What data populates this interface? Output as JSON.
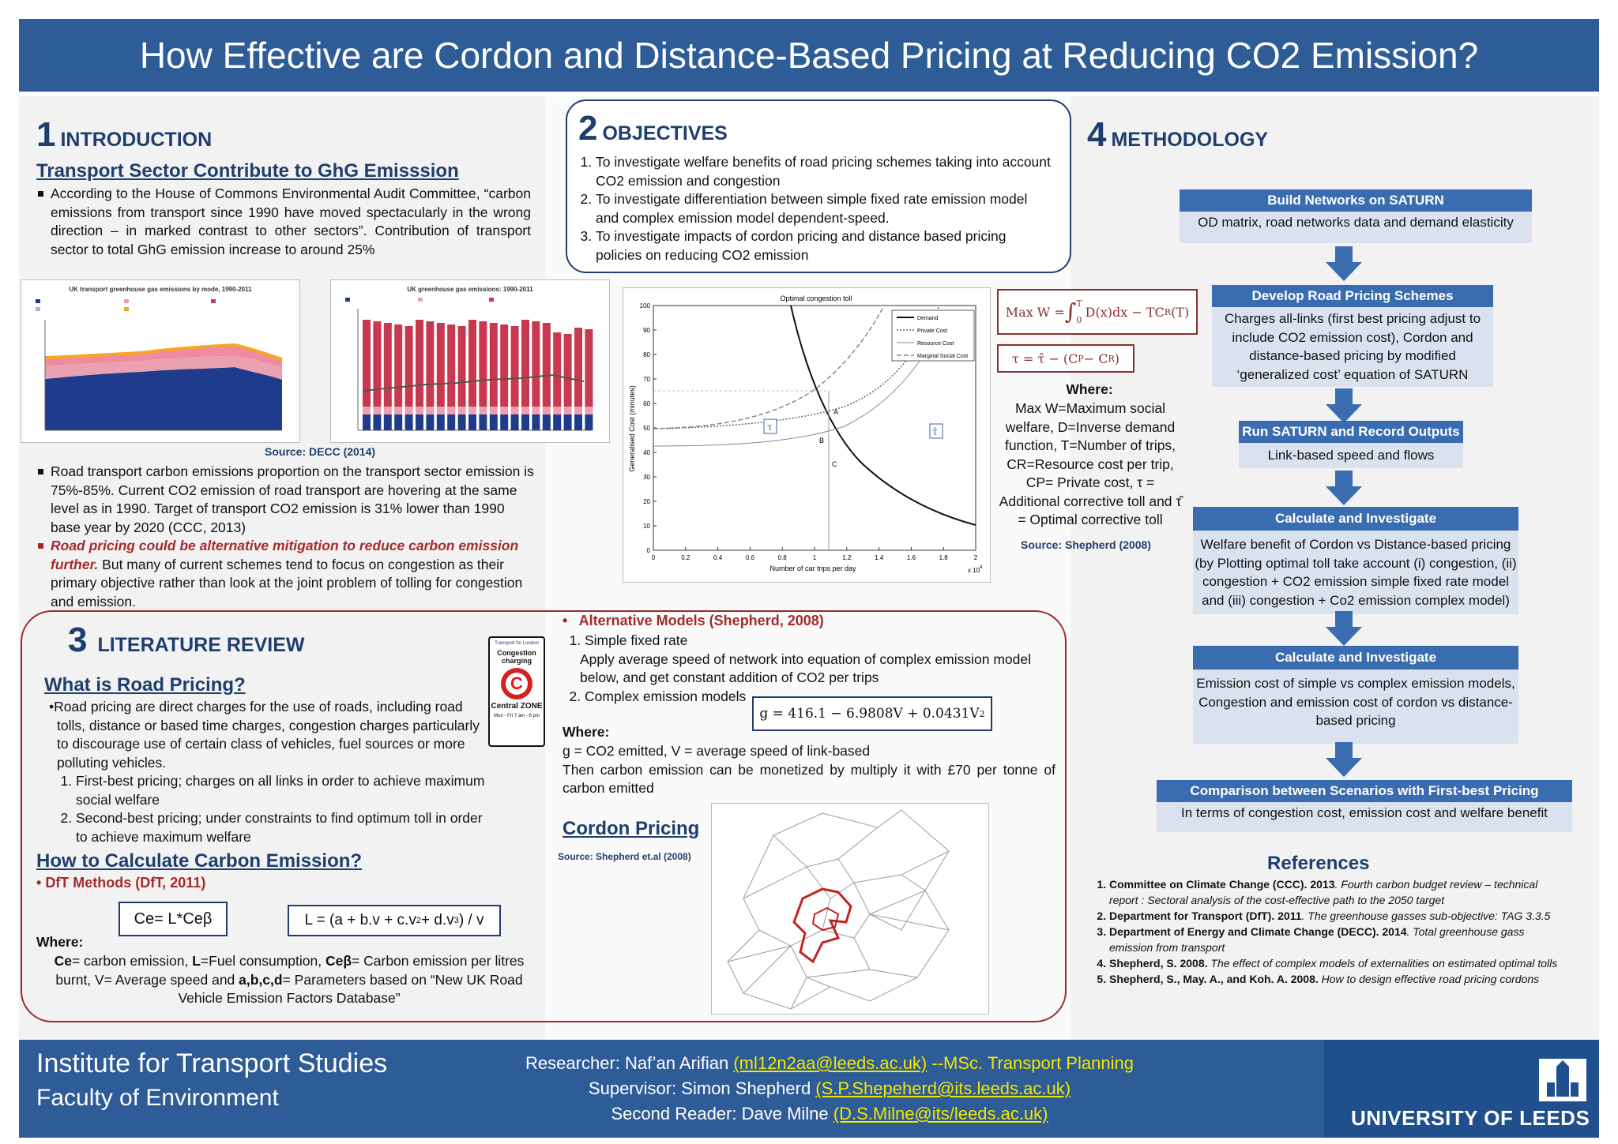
{
  "title": "How Effective are Cordon and Distance-Based Pricing at Reducing CO2 Emission?",
  "intro": {
    "num": "1",
    "heading": "INTRODUCTION",
    "subheading": "Transport Sector Contribute to GhG Emisssion",
    "bullet1": "According to the House of Commons Environmental Audit Committee, “carbon emissions from transport since 1990 have moved spectacularly in the wrong direction – in marked contrast to other sectors”. Contribution of transport sector to total GhG emission increase to around 25%",
    "fig1_title": "UK transport greenhouse gas emissions by mode, 1990-2011",
    "fig2_title": "UK greenhouse gas emissions: 1990-2011",
    "source": "Source: DECC (2014)",
    "bullet2": "Road transport carbon emissions  proportion on the transport sector emission is  75%-85%. Current  CO2 emission of road transport are hovering at the same level as in 1990. Target of transport CO2 emission is  31% lower than 1990 base year by 2020 (CCC, 2013)",
    "bullet3_red": "Road pricing could be alternative mitigation to reduce carbon emission further.",
    "bullet3_rest": " But many of current schemes tend to focus on congestion as their primary objective rather than look at the joint problem of tolling for congestion and emission."
  },
  "objectives": {
    "num": "2",
    "heading": "OBJECTIVES",
    "items": [
      "To investigate welfare benefits of road pricing schemes taking into account CO2 emission and congestion",
      "To investigate differentiation between simple fixed rate emission model and complex emission model dependent-speed.",
      "To investigate impacts of cordon pricing and distance based pricing policies on reducing CO2 emission"
    ]
  },
  "toll_chart": {
    "title": "Optimal congestion toll",
    "xlabel": "Number of car trips per day",
    "ylabel": "Generalised Cost (minutes)",
    "xticks": [
      "0",
      "0.2",
      "0.4",
      "0.6",
      "0.8",
      "1",
      "1.2",
      "1.4",
      "1.6",
      "1.8",
      "2"
    ],
    "yticks": [
      "0",
      "10",
      "20",
      "30",
      "40",
      "50",
      "60",
      "70",
      "80",
      "90",
      "100"
    ],
    "xexp": "x 10",
    "xexp_sup": "4",
    "legend": [
      "Demand",
      "Private Cost",
      "Resource Cost",
      "Marginal Social Cost"
    ],
    "points": [
      "A",
      "B",
      "C"
    ],
    "tau": "τ",
    "tau_hat": "τ̂"
  },
  "equations": {
    "maxw_prefix": "Max W = ",
    "maxw_integral": "∫",
    "maxw_upper": "T",
    "maxw_lower": "0",
    "maxw_body": "D(x)dx − TC",
    "maxw_sub": "R",
    "maxw_end": " (T)",
    "tau_eq": "τ = τ̂ − (C",
    "tau_p": "P",
    "tau_mid": " − C",
    "tau_r": "R",
    "tau_end": ")",
    "where": "Where:",
    "where_text": "Max W=Maximum social welfare, D=Inverse demand function, T=Number of trips, CR=Resource cost per trip, CP= Private cost, τ = Additional corrective toll and τ̂ = Optimal corrective toll",
    "source": "Source: Shepherd (2008)"
  },
  "methodology": {
    "num": "4",
    "heading": "METHODOLOGY",
    "steps": [
      {
        "head": "Build Networks on SATURN",
        "body": "OD matrix, road networks data and demand elasticity"
      },
      {
        "head": "Develop Road Pricing Schemes",
        "body": "Charges all-links (first best pricing adjust to include CO2 emission cost), Cordon and distance-based pricing by modified ‘generalized cost’ equation of SATURN"
      },
      {
        "head": "Run SATURN and Record Outputs",
        "body": "Link-based speed and flows"
      },
      {
        "head": "Calculate and Investigate",
        "body": "Welfare benefit of Cordon vs Distance-based pricing (by Plotting optimal toll take account (i) congestion, (ii) congestion + CO2 emission simple fixed rate model and (iii) congestion + Co2 emission complex model)"
      },
      {
        "head": "Calculate and Investigate",
        "body": "Emission cost of simple vs complex emission models, Congestion and emission cost  of cordon vs distance-based pricing"
      },
      {
        "head": "Comparison between Scenarios with First-best Pricing",
        "body": "In terms of congestion cost, emission cost and welfare benefit"
      }
    ]
  },
  "literature": {
    "num": "3",
    "heading": "LITERATURE REVIEW",
    "sub1": "What is Road Pricing?",
    "def": "Road pricing are direct charges for the use of roads, including road tolls, distance or based time charges, congestion charges particularly to discourage use of certain class of vehicles, fuel sources or more polluting vehicles.",
    "types": [
      "First-best pricing; charges on all links in order to  achieve maximum social welfare",
      "Second-best pricing; under constraints  to find optimum toll in order to achieve maximum welfare"
    ],
    "sign_top": "Transport for London",
    "sign_cc": "Congestion charging",
    "sign_c": "C",
    "sign_zone": "Central ZONE",
    "sign_time": "Mon - Fri 7 am - 6 pm",
    "sub2": "How to Calculate Carbon Emission?",
    "dft": "DfT Methods (DfT, 2011)",
    "eq1": "Ce= L*Ceβ",
    "eq2_a": "L = (a + b.v + c.v",
    "eq2_sup1": "2",
    "eq2_b": " + d.v",
    "eq2_sup2": "3",
    "eq2_c": ") / v",
    "where": "Where:",
    "where_ce": "Ce",
    "where_t1": "= carbon emission, ",
    "where_l": "L",
    "where_t2": "=Fuel consumption, ",
    "where_ceb": "Ceβ",
    "where_t3": "= Carbon emission per litres burnt, V= Average speed and ",
    "where_abcd": "a,b,c,d",
    "where_t4": "= Parameters based on “New UK Road Vehicle Emission Factors Database”",
    "alt_head": "Alternative Models (Shepherd, 2008)",
    "alt1": "Simple fixed rate",
    "alt1_desc": "Apply average speed of network into equation of complex emission model below, and  get constant addition of CO2 per trips",
    "alt2": "Complex emission models",
    "g_eq": "g = 416.1 − 6.9808V + 0.0431V",
    "g_sup": "2",
    "where2": "Where:",
    "g_where": "g = CO2 emitted, V = average speed of link-based",
    "monetize": "Then carbon emission can be monetized by multiply it with £70 per tonne of carbon emitted",
    "cordon_head": "Cordon Pricing",
    "cordon_src": "Source: Shepherd et.al (2008)"
  },
  "references": {
    "heading": "References",
    "items": [
      {
        "b": "Committee on Climate Change (CCC). 2013",
        "i": ". Fourth carbon budget review – technical report : Sectoral analysis of the cost-effective path to the 2050 target"
      },
      {
        "b": "Department for Transport (DfT). 2011",
        "i": ". The greenhouse gasses sub-objective: TAG 3.3.5"
      },
      {
        "b": "Department of Energy and Climate Change (DECC). 2014",
        "i": ". Total greenhouse gass emission from transport"
      },
      {
        "b": "Shepherd, S. 2008.",
        "i": " The effect of complex models of externalities on estimated optimal tolls"
      },
      {
        "b": "Shepherd, S., May. A., and Koh. A. 2008.",
        "i": " How to design effective road pricing cordons"
      }
    ]
  },
  "footer": {
    "institute": "Institute for Transport Studies",
    "faculty": "Faculty of Environment",
    "researcher_label": "Researcher: Naf’an Arifian ",
    "researcher_mail": "(ml12n2aa@leeds.ac.uk)",
    "researcher_tail": " --MSc. Transport Planning",
    "supervisor_label": "Supervisor: Simon Shepherd ",
    "supervisor_mail": "(S.P.Shepeherd@its.leeds.ac.uk)",
    "reader_label": "Second Reader: Dave Milne ",
    "reader_mail": "(D.S.Milne@its/leeds.ac.uk)",
    "university": "UNIVERSITY OF LEEDS"
  },
  "colors": {
    "primary": "#2e5c97",
    "accent_red": "#a52a2a",
    "method_head": "#3a6cb0",
    "method_body": "#dbe2ef",
    "email": "#f2e600"
  }
}
